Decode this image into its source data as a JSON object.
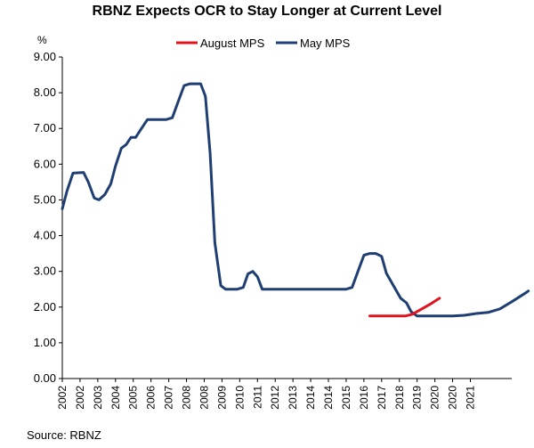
{
  "chart_data": {
    "type": "line",
    "title": "RBNZ Expects OCR to Stay Longer at Current Level",
    "ylabel": "%",
    "xlabel": "",
    "ylim": [
      0,
      9
    ],
    "xlim": [
      2002,
      2021
    ],
    "yticks": [
      "0.00",
      "1.00",
      "2.00",
      "3.00",
      "4.00",
      "5.00",
      "6.00",
      "7.00",
      "8.00",
      "9.00"
    ],
    "xticks": [
      "2002",
      "2002",
      "2003",
      "2004",
      "2005",
      "2006",
      "2007",
      "2008",
      "2008",
      "2009",
      "2010",
      "2011",
      "2012",
      "2013",
      "2014",
      "2014",
      "2015",
      "2016",
      "2017",
      "2018",
      "2019",
      "2020",
      "2020",
      "2021"
    ],
    "xtick_values": [
      2002.0,
      2002.75,
      2003.5,
      2004.25,
      2005.0,
      2005.75,
      2006.5,
      2007.25,
      2008.0,
      2008.75,
      2009.5,
      2010.25,
      2011.0,
      2011.75,
      2012.5,
      2013.25,
      2014.0,
      2014.75,
      2015.5,
      2016.25,
      2017.0,
      2017.75,
      2018.5,
      2019.25
    ],
    "legend": {
      "placement": "top-center"
    },
    "source": "Source: RBNZ",
    "series": [
      {
        "name": "August MPS",
        "color": "#e0141e",
        "points": [
          [
            2015.0,
            1.75
          ],
          [
            2016.0,
            1.75
          ],
          [
            2016.5,
            1.75
          ],
          [
            2016.8,
            1.8
          ],
          [
            2017.2,
            1.95
          ],
          [
            2017.6,
            2.1
          ],
          [
            2017.95,
            2.25
          ]
        ]
      },
      {
        "name": "May MPS",
        "color": "#1f3f73",
        "points": [
          [
            2002.0,
            4.75
          ],
          [
            2002.2,
            5.25
          ],
          [
            2002.45,
            5.75
          ],
          [
            2002.9,
            5.77
          ],
          [
            2003.1,
            5.5
          ],
          [
            2003.35,
            5.05
          ],
          [
            2003.55,
            5.0
          ],
          [
            2003.8,
            5.15
          ],
          [
            2004.05,
            5.45
          ],
          [
            2004.25,
            5.95
          ],
          [
            2004.5,
            6.45
          ],
          [
            2004.7,
            6.55
          ],
          [
            2004.9,
            6.75
          ],
          [
            2005.1,
            6.75
          ],
          [
            2005.35,
            7.0
          ],
          [
            2005.6,
            7.25
          ],
          [
            2006.0,
            7.25
          ],
          [
            2006.4,
            7.25
          ],
          [
            2006.65,
            7.3
          ],
          [
            2006.9,
            7.75
          ],
          [
            2007.15,
            8.2
          ],
          [
            2007.4,
            8.25
          ],
          [
            2007.85,
            8.25
          ],
          [
            2008.05,
            7.9
          ],
          [
            2008.25,
            6.3
          ],
          [
            2008.45,
            3.8
          ],
          [
            2008.7,
            2.6
          ],
          [
            2008.9,
            2.5
          ],
          [
            2009.4,
            2.5
          ],
          [
            2009.65,
            2.55
          ],
          [
            2009.85,
            2.93
          ],
          [
            2010.05,
            3.0
          ],
          [
            2010.25,
            2.85
          ],
          [
            2010.45,
            2.5
          ],
          [
            2010.8,
            2.5
          ],
          [
            2014.0,
            2.5
          ],
          [
            2014.25,
            2.55
          ],
          [
            2014.5,
            3.0
          ],
          [
            2014.75,
            3.45
          ],
          [
            2015.0,
            3.5
          ],
          [
            2015.25,
            3.5
          ],
          [
            2015.5,
            3.42
          ],
          [
            2015.7,
            2.95
          ],
          [
            2016.0,
            2.6
          ],
          [
            2016.3,
            2.25
          ],
          [
            2016.55,
            2.12
          ],
          [
            2016.75,
            1.87
          ],
          [
            2017.0,
            1.75
          ],
          [
            2018.5,
            1.75
          ],
          [
            2019.0,
            1.77
          ],
          [
            2019.5,
            1.82
          ],
          [
            2020.0,
            1.85
          ],
          [
            2020.5,
            1.95
          ],
          [
            2021.0,
            2.15
          ],
          [
            2021.6,
            2.4
          ],
          [
            2021.7,
            2.45
          ]
        ]
      }
    ]
  }
}
